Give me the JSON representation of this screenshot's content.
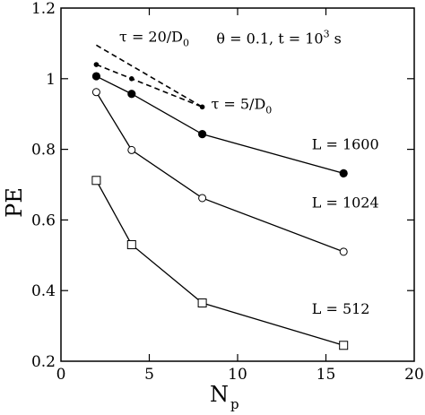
{
  "chart_data": {
    "type": "line",
    "title": "",
    "xlabel": "N",
    "xlabel_sub": "p",
    "ylabel": "PE",
    "xlim": [
      0,
      20
    ],
    "ylim": [
      0.2,
      1.2
    ],
    "xticks": [
      0,
      5,
      10,
      15,
      20
    ],
    "xtick_labels": [
      "0",
      "5",
      "10",
      "15",
      "20"
    ],
    "yticks": [
      0.2,
      0.4,
      0.6,
      0.8,
      1.0,
      1.2
    ],
    "ytick_labels": [
      "0.2",
      "0.4",
      "0.6",
      "0.8",
      "1",
      "1.2"
    ],
    "grid": false,
    "series": [
      {
        "label_text": "L = 1600",
        "label_at": [
          14.2,
          0.8
        ],
        "marker": "filled-circle",
        "line": "solid",
        "x": [
          2,
          4,
          8,
          16
        ],
        "y": [
          1.007,
          0.957,
          0.843,
          0.732
        ]
      },
      {
        "label_text": "L = 1024",
        "label_at": [
          14.2,
          0.635
        ],
        "marker": "open-circle",
        "line": "solid",
        "x": [
          2,
          4,
          8,
          16
        ],
        "y": [
          0.962,
          0.798,
          0.662,
          0.51
        ]
      },
      {
        "label_text": "L = 512",
        "label_at": [
          14.2,
          0.335
        ],
        "marker": "open-square",
        "line": "solid",
        "x": [
          2,
          4,
          8,
          16
        ],
        "y": [
          0.712,
          0.53,
          0.365,
          0.245
        ]
      },
      {
        "label_text": "",
        "marker": "small-dot",
        "line": "dashed",
        "x": [
          2,
          4,
          8
        ],
        "y": [
          1.04,
          1.0,
          0.92
        ]
      },
      {
        "label_text": "",
        "marker": "none",
        "line": "dashed",
        "x": [
          2,
          8
        ],
        "y": [
          1.095,
          0.92
        ]
      }
    ],
    "annotations": {
      "params": {
        "prefix": "θ = 0.1, t = 10",
        "sup": "3",
        "suffix": " s",
        "at": [
          8.8,
          1.1
        ]
      },
      "tau_top": {
        "prefix": "τ = 20/D",
        "sub": "0",
        "at": [
          3.3,
          1.105
        ]
      },
      "tau_bottom": {
        "prefix": "τ = 5/D",
        "sub": "0",
        "at": [
          8.5,
          0.915
        ]
      }
    }
  }
}
